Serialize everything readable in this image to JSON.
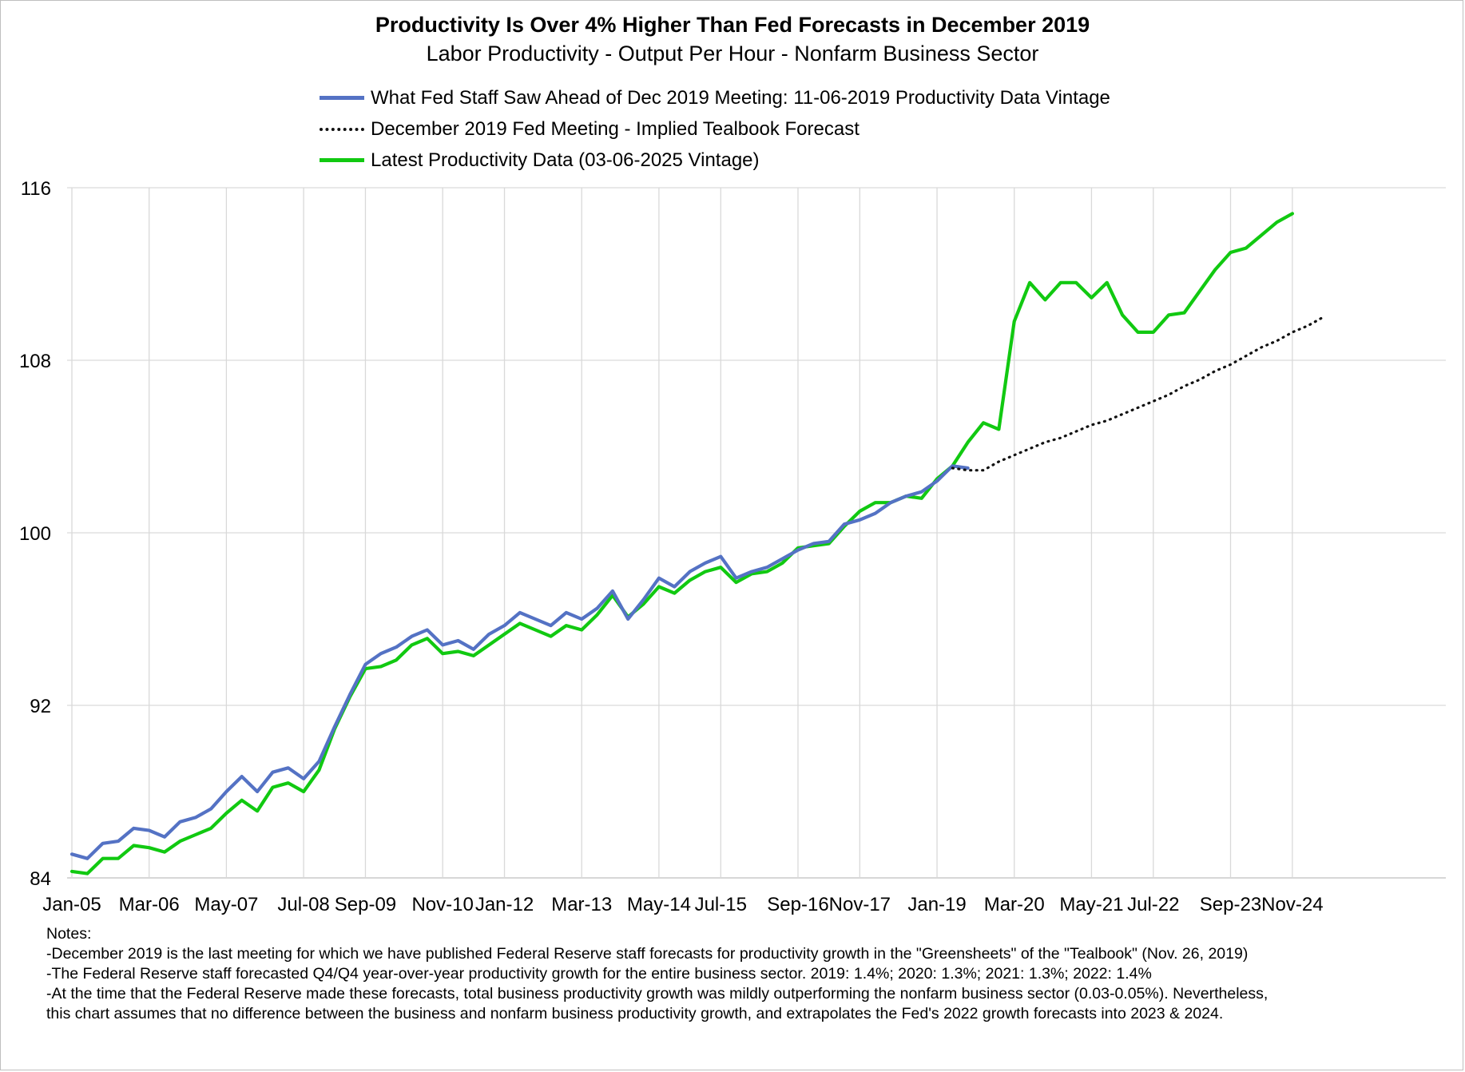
{
  "chart_data": {
    "type": "line",
    "title": "Productivity Is Over 4% Higher Than Fed Forecasts in December 2019",
    "subtitle": "Labor Productivity -  Output Per Hour - Nonfarm Business Sector",
    "ylim": [
      84,
      116
    ],
    "yticks": [
      84,
      92,
      100,
      108,
      116
    ],
    "xlabel": "",
    "ylabel": "",
    "grid": true,
    "legend_position": "top-left",
    "quarter_start": "2005-Q1",
    "x_tick_labels": [
      "Jan-05",
      "Mar-06",
      "May-07",
      "Jul-08",
      "Sep-09",
      "Nov-10",
      "Jan-12",
      "Mar-13",
      "May-14",
      "Jul-15",
      "Sep-16",
      "Nov-17",
      "Jan-19",
      "Mar-20",
      "May-21",
      "Jul-22",
      "Sep-23",
      "Nov-24"
    ],
    "x_tick_quarter_index": [
      0,
      5,
      10,
      15,
      19,
      24,
      28,
      33,
      38,
      42,
      47,
      51,
      56,
      61,
      66,
      70,
      75,
      79
    ],
    "series": [
      {
        "name": "What Fed Staff Saw Ahead of Dec 2019 Meeting: 11-06-2019 Productivity Data Vintage",
        "color": "#5472C4",
        "style": "solid",
        "start_index": 0,
        "values": [
          85.1,
          84.9,
          85.6,
          85.7,
          86.3,
          86.2,
          85.9,
          86.6,
          86.8,
          87.2,
          88.0,
          88.7,
          88.0,
          88.9,
          89.1,
          88.6,
          89.4,
          91.0,
          92.5,
          93.9,
          94.4,
          94.7,
          95.2,
          95.5,
          94.8,
          95.0,
          94.6,
          95.3,
          95.7,
          96.3,
          96.0,
          95.7,
          96.3,
          96.0,
          96.5,
          97.3,
          96.0,
          96.9,
          97.9,
          97.5,
          98.2,
          98.6,
          98.9,
          97.9,
          98.2,
          98.4,
          98.8,
          99.2,
          99.5,
          99.6,
          100.4,
          100.6,
          100.9,
          101.4,
          101.7,
          101.9,
          102.4,
          103.1,
          103.0
        ]
      },
      {
        "name": "December 2019 Fed Meeting - Implied Tealbook Forecast",
        "color": "#111111",
        "style": "dotted",
        "start_index": 57,
        "values": [
          103.0,
          102.9,
          102.9,
          103.3,
          103.6,
          103.9,
          104.2,
          104.4,
          104.7,
          105.0,
          105.2,
          105.5,
          105.8,
          106.1,
          106.4,
          106.8,
          107.1,
          107.5,
          107.8,
          108.2,
          108.6,
          108.9,
          109.3,
          109.6,
          110.0
        ]
      },
      {
        "name": "Latest Productivity Data (03-06-2025 Vintage)",
        "color": "#11C911",
        "style": "solid",
        "start_index": 0,
        "values": [
          84.3,
          84.2,
          84.9,
          84.9,
          85.5,
          85.4,
          85.2,
          85.7,
          86.0,
          86.3,
          87.0,
          87.6,
          87.1,
          88.2,
          88.4,
          88.0,
          89.0,
          90.9,
          92.4,
          93.7,
          93.8,
          94.1,
          94.8,
          95.1,
          94.4,
          94.5,
          94.3,
          94.8,
          95.3,
          95.8,
          95.5,
          95.2,
          95.7,
          95.5,
          96.2,
          97.1,
          96.1,
          96.7,
          97.5,
          97.2,
          97.8,
          98.2,
          98.4,
          97.7,
          98.1,
          98.2,
          98.6,
          99.3,
          99.4,
          99.5,
          100.3,
          101.0,
          101.4,
          101.4,
          101.7,
          101.6,
          102.5,
          103.1,
          104.2,
          105.1,
          104.8,
          109.8,
          111.6,
          110.8,
          111.6,
          111.6,
          110.9,
          111.6,
          110.1,
          109.3,
          109.3,
          110.1,
          110.2,
          111.2,
          112.2,
          113.0,
          113.2,
          113.8,
          114.4,
          114.8
        ]
      }
    ]
  },
  "notes": {
    "heading": "Notes:",
    "lines": [
      "-December 2019 is the last meeting for which we have published Federal Reserve staff forecasts for productivity growth in the \"Greensheets\" of the  \"Tealbook\" (Nov. 26, 2019)",
      "-The Federal Reserve staff forecasted Q4/Q4 year-over-year productivity growth for the entire business sector. 2019: 1.4%; 2020: 1.3%; 2021: 1.3%; 2022: 1.4%",
      "-At the time that the Federal Reserve made these forecasts, total business productivity growth was mildly outperforming the nonfarm business sector (0.03-0.05%). Nevertheless,",
      "this chart assumes that no difference between the business and nonfarm business productivity growth, and extrapolates the Fed's 2022 growth forecasts into 2023 & 2024."
    ]
  }
}
